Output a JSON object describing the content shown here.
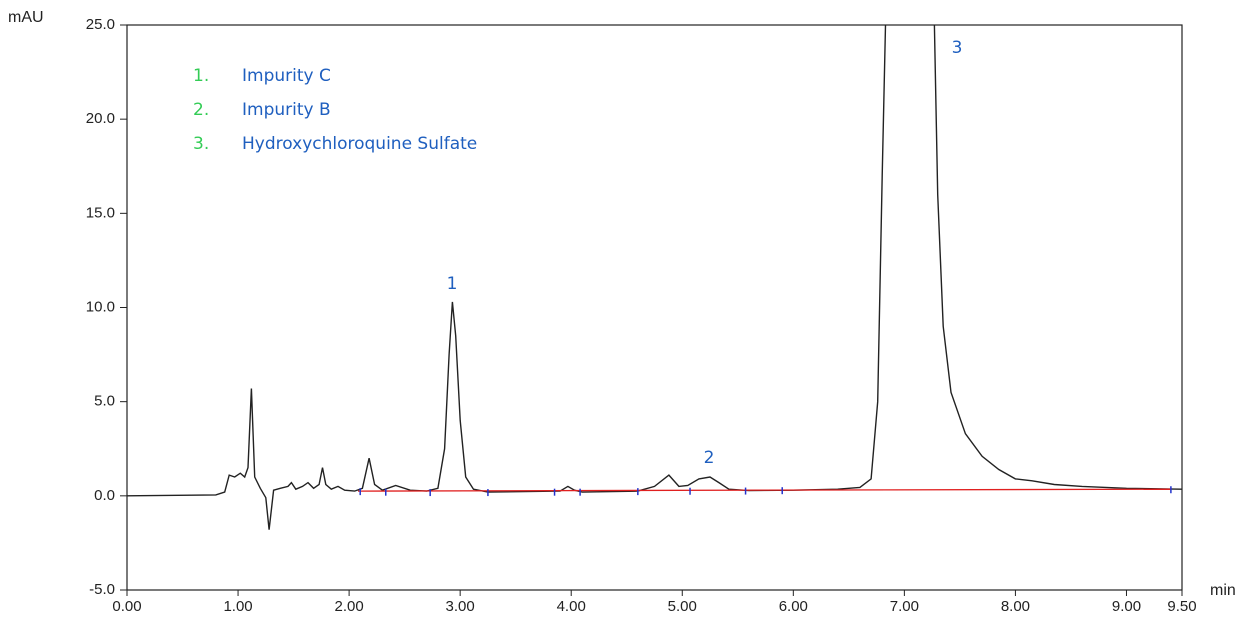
{
  "chart_data": {
    "type": "line",
    "y_label": "mAU",
    "x_label": "min",
    "xlim": [
      0,
      9.5
    ],
    "ylim": [
      -5,
      25
    ],
    "xticks": [
      {
        "value": 0,
        "label": "0.00"
      },
      {
        "value": 1,
        "label": "1.00"
      },
      {
        "value": 2,
        "label": "2.00"
      },
      {
        "value": 3,
        "label": "3.00"
      },
      {
        "value": 4,
        "label": "4.00"
      },
      {
        "value": 5,
        "label": "5.00"
      },
      {
        "value": 6,
        "label": "6.00"
      },
      {
        "value": 7,
        "label": "7.00"
      },
      {
        "value": 8,
        "label": "8.00"
      },
      {
        "value": 9,
        "label": "9.00"
      },
      {
        "value": 9.5,
        "label": "9.50"
      }
    ],
    "yticks": [
      {
        "value": -5,
        "label": "-5.0"
      },
      {
        "value": 0,
        "label": "0.0"
      },
      {
        "value": 5,
        "label": "5.0"
      },
      {
        "value": 10,
        "label": "10.0"
      },
      {
        "value": 15,
        "label": "15.0"
      },
      {
        "value": 20,
        "label": "20.0"
      },
      {
        "value": 25,
        "label": "25.0"
      }
    ],
    "series": [
      {
        "color": "#222222",
        "x": [
          0,
          0.8,
          0.88,
          0.92,
          0.97,
          1.02,
          1.06,
          1.09,
          1.12,
          1.15,
          1.2,
          1.25,
          1.28,
          1.32,
          1.38,
          1.45,
          1.48,
          1.52,
          1.58,
          1.63,
          1.68,
          1.73,
          1.76,
          1.79,
          1.84,
          1.9,
          1.96,
          2.05,
          2.12,
          2.18,
          2.23,
          2.3,
          2.42,
          2.55,
          2.7,
          2.8,
          2.86,
          2.9,
          2.93,
          2.96,
          3.0,
          3.05,
          3.12,
          3.25,
          3.9,
          3.97,
          4.03,
          4.1,
          4.6,
          4.75,
          4.88,
          4.97,
          5.05,
          5.15,
          5.25,
          5.33,
          5.42,
          5.6,
          6.0,
          6.4,
          6.6,
          6.7,
          6.76,
          6.8,
          6.83,
          7.05,
          7.27,
          7.3,
          7.35,
          7.42,
          7.55,
          7.7,
          7.85,
          8.0,
          8.15,
          8.35,
          8.6,
          9.0,
          9.5
        ],
        "values": [
          0,
          0.05,
          0.2,
          1.1,
          1.0,
          1.2,
          1.0,
          1.5,
          5.7,
          1.0,
          0.4,
          -0.1,
          -1.8,
          0.3,
          0.4,
          0.5,
          0.7,
          0.35,
          0.5,
          0.7,
          0.4,
          0.6,
          1.5,
          0.6,
          0.35,
          0.5,
          0.3,
          0.25,
          0.4,
          2.0,
          0.6,
          0.3,
          0.55,
          0.3,
          0.25,
          0.4,
          2.5,
          7.5,
          10.3,
          8.5,
          4.0,
          1.0,
          0.35,
          0.2,
          0.25,
          0.5,
          0.3,
          0.2,
          0.25,
          0.5,
          1.1,
          0.5,
          0.55,
          0.9,
          1.0,
          0.7,
          0.35,
          0.28,
          0.3,
          0.35,
          0.45,
          0.9,
          5,
          17,
          25,
          null,
          25,
          16,
          9,
          5.5,
          3.3,
          2.1,
          1.4,
          0.9,
          0.8,
          0.6,
          0.5,
          0.4,
          0.35
        ]
      },
      {
        "color": "#e02020",
        "x": [
          2.08,
          9.4
        ],
        "values": [
          0.25,
          0.35
        ]
      }
    ],
    "integration_marks": {
      "color": "#2233cc",
      "x": [
        2.1,
        2.33,
        2.73,
        3.25,
        3.85,
        4.08,
        4.6,
        5.07,
        5.57,
        5.9,
        9.4
      ],
      "values": [
        0.25,
        0.22,
        0.2,
        0.2,
        0.22,
        0.22,
        0.25,
        0.27,
        0.28,
        0.3,
        0.35
      ]
    },
    "peak_labels": [
      "1",
      "2",
      "3"
    ],
    "legend": [
      {
        "number": "1.",
        "label": "Impurity C"
      },
      {
        "number": "2.",
        "label": "Impurity B"
      },
      {
        "number": "3.",
        "label": "Hydroxychloroquine Sulfate"
      }
    ]
  }
}
